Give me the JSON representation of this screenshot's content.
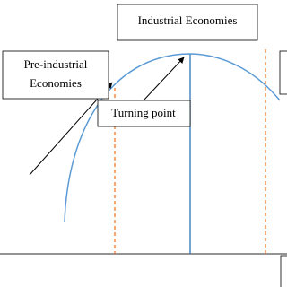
{
  "labels": {
    "industrial": "Industrial Economies",
    "pre_industrial": [
      "Pre-industrial",
      "Economies"
    ],
    "turning_point": "Turning point"
  }
}
